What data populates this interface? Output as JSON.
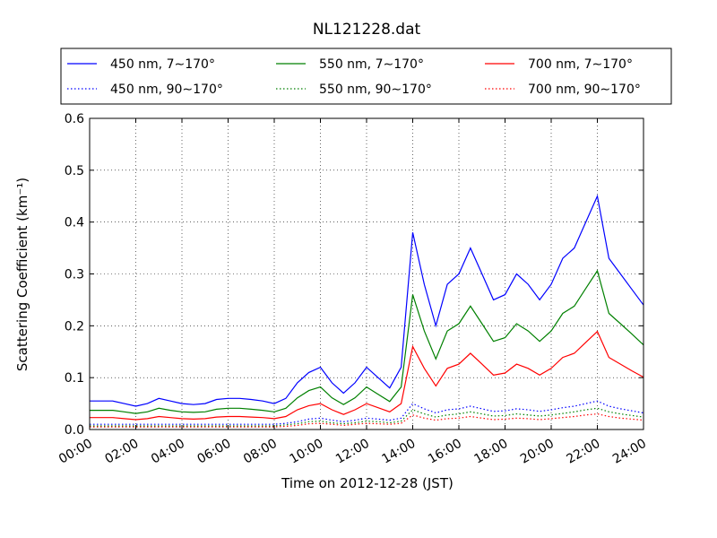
{
  "chart_data": {
    "type": "line",
    "title": "NL121228.dat",
    "xlabel": "Time on 2012-12-28 (JST)",
    "ylabel": "Scattering Coefficient (km⁻¹)",
    "x": [
      0,
      0.5,
      1,
      1.5,
      2,
      2.5,
      3,
      3.5,
      4,
      4.5,
      5,
      5.5,
      6,
      6.5,
      7,
      7.5,
      8,
      8.5,
      9,
      9.5,
      10,
      10.5,
      11,
      11.5,
      12,
      12.5,
      13,
      13.5,
      14,
      14.5,
      15,
      15.5,
      16,
      16.5,
      17,
      17.5,
      18,
      18.5,
      19,
      19.5,
      20,
      20.5,
      21,
      21.5,
      22,
      22.5,
      23,
      23.5,
      24
    ],
    "series": [
      {
        "name": "450 nm, 7∼170°",
        "color": "#0000ff",
        "dashed": false,
        "values": [
          0.055,
          0.055,
          0.055,
          0.05,
          0.045,
          0.05,
          0.06,
          0.055,
          0.05,
          0.048,
          0.05,
          0.058,
          0.06,
          0.06,
          0.058,
          0.055,
          0.05,
          0.06,
          0.09,
          0.11,
          0.12,
          0.09,
          0.07,
          0.09,
          0.12,
          0.1,
          0.08,
          0.12,
          0.38,
          0.28,
          0.2,
          0.28,
          0.3,
          0.35,
          0.3,
          0.25,
          0.26,
          0.3,
          0.28,
          0.25,
          0.28,
          0.33,
          0.35,
          0.4,
          0.45,
          0.33,
          0.3,
          0.27,
          0.24
        ]
      },
      {
        "name": "550 nm, 7∼170°",
        "color": "#008000",
        "dashed": false,
        "values": [
          0.037,
          0.037,
          0.037,
          0.034,
          0.031,
          0.034,
          0.041,
          0.037,
          0.034,
          0.033,
          0.034,
          0.039,
          0.041,
          0.041,
          0.039,
          0.037,
          0.034,
          0.041,
          0.061,
          0.075,
          0.082,
          0.061,
          0.048,
          0.061,
          0.082,
          0.068,
          0.054,
          0.082,
          0.26,
          0.19,
          0.136,
          0.19,
          0.204,
          0.238,
          0.204,
          0.17,
          0.177,
          0.204,
          0.19,
          0.17,
          0.19,
          0.224,
          0.238,
          0.272,
          0.306,
          0.224,
          0.204,
          0.184,
          0.163
        ]
      },
      {
        "name": "700 nm, 7∼170°",
        "color": "#ff0000",
        "dashed": false,
        "values": [
          0.023,
          0.023,
          0.023,
          0.021,
          0.019,
          0.021,
          0.025,
          0.023,
          0.021,
          0.02,
          0.021,
          0.024,
          0.025,
          0.025,
          0.024,
          0.023,
          0.021,
          0.025,
          0.038,
          0.046,
          0.05,
          0.038,
          0.029,
          0.038,
          0.05,
          0.042,
          0.034,
          0.05,
          0.16,
          0.118,
          0.084,
          0.118,
          0.126,
          0.147,
          0.126,
          0.105,
          0.109,
          0.126,
          0.118,
          0.105,
          0.118,
          0.139,
          0.147,
          0.168,
          0.189,
          0.139,
          0.126,
          0.113,
          0.101
        ]
      },
      {
        "name": "450 nm, 90∼170°",
        "color": "#0000ff",
        "dashed": true,
        "values": [
          0.01,
          0.01,
          0.01,
          0.01,
          0.01,
          0.01,
          0.01,
          0.01,
          0.01,
          0.01,
          0.01,
          0.01,
          0.01,
          0.01,
          0.01,
          0.01,
          0.01,
          0.012,
          0.015,
          0.02,
          0.022,
          0.018,
          0.015,
          0.018,
          0.022,
          0.02,
          0.018,
          0.022,
          0.05,
          0.04,
          0.032,
          0.038,
          0.04,
          0.045,
          0.04,
          0.035,
          0.036,
          0.04,
          0.038,
          0.035,
          0.038,
          0.042,
          0.045,
          0.05,
          0.055,
          0.045,
          0.04,
          0.036,
          0.032
        ]
      },
      {
        "name": "550 nm, 90∼170°",
        "color": "#008000",
        "dashed": true,
        "values": [
          0.007,
          0.007,
          0.007,
          0.007,
          0.007,
          0.007,
          0.007,
          0.007,
          0.007,
          0.007,
          0.007,
          0.007,
          0.007,
          0.007,
          0.007,
          0.007,
          0.007,
          0.009,
          0.011,
          0.015,
          0.016,
          0.013,
          0.011,
          0.013,
          0.016,
          0.015,
          0.013,
          0.016,
          0.038,
          0.03,
          0.024,
          0.028,
          0.03,
          0.034,
          0.03,
          0.026,
          0.027,
          0.03,
          0.028,
          0.026,
          0.028,
          0.031,
          0.034,
          0.038,
          0.041,
          0.034,
          0.03,
          0.027,
          0.024
        ]
      },
      {
        "name": "700 nm, 90∼170°",
        "color": "#ff0000",
        "dashed": true,
        "values": [
          0.005,
          0.005,
          0.005,
          0.005,
          0.005,
          0.005,
          0.005,
          0.005,
          0.005,
          0.005,
          0.005,
          0.005,
          0.005,
          0.005,
          0.005,
          0.005,
          0.005,
          0.006,
          0.008,
          0.011,
          0.012,
          0.01,
          0.008,
          0.01,
          0.012,
          0.011,
          0.01,
          0.012,
          0.028,
          0.022,
          0.018,
          0.021,
          0.022,
          0.025,
          0.022,
          0.019,
          0.02,
          0.022,
          0.021,
          0.019,
          0.021,
          0.023,
          0.025,
          0.028,
          0.03,
          0.025,
          0.022,
          0.02,
          0.018
        ]
      }
    ],
    "xlim": [
      0,
      24
    ],
    "xticks": [
      {
        "value": 0,
        "label": "00:00"
      },
      {
        "value": 2,
        "label": "02:00"
      },
      {
        "value": 4,
        "label": "04:00"
      },
      {
        "value": 6,
        "label": "06:00"
      },
      {
        "value": 8,
        "label": "08:00"
      },
      {
        "value": 10,
        "label": "10:00"
      },
      {
        "value": 12,
        "label": "12:00"
      },
      {
        "value": 14,
        "label": "14:00"
      },
      {
        "value": 16,
        "label": "16:00"
      },
      {
        "value": 18,
        "label": "18:00"
      },
      {
        "value": 20,
        "label": "20:00"
      },
      {
        "value": 22,
        "label": "22:00"
      },
      {
        "value": 24,
        "label": "24:00"
      }
    ],
    "ylim": [
      0,
      0.6
    ],
    "yticks": [
      {
        "value": 0,
        "label": "0.0"
      },
      0.1,
      0.2,
      0.3,
      0.4,
      0.5,
      0.6
    ],
    "grid": true,
    "legend": "top"
  }
}
